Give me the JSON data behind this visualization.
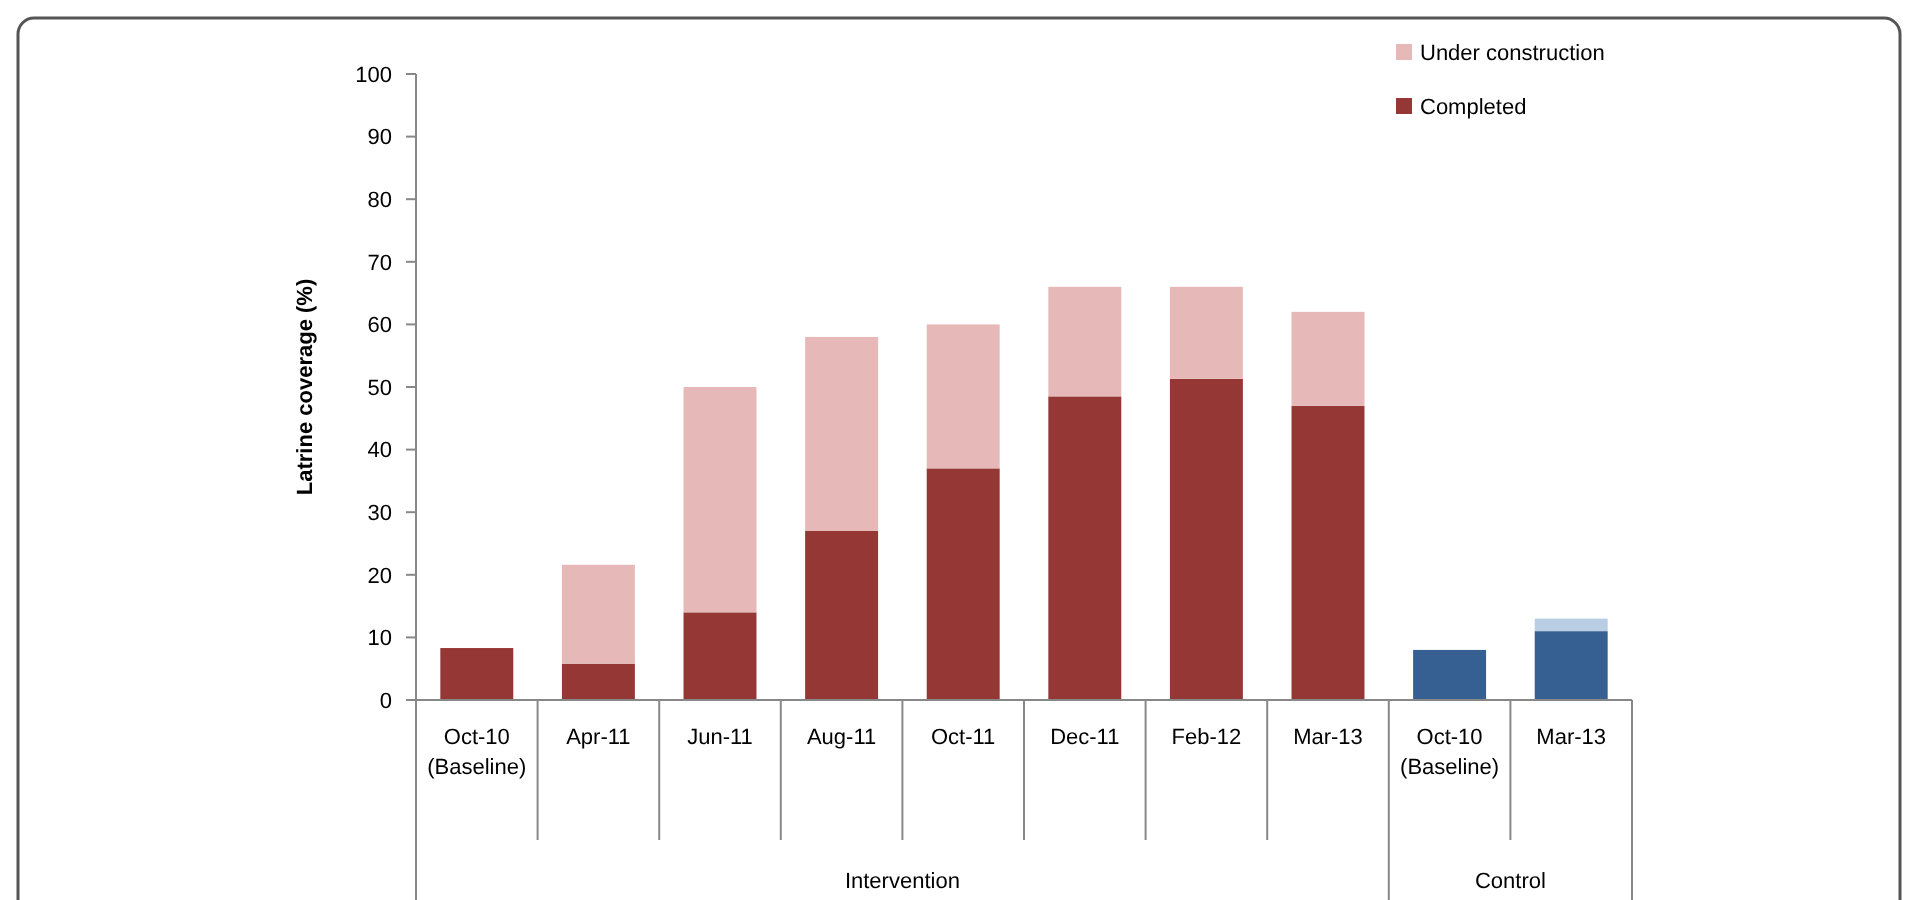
{
  "chart_data": {
    "type": "bar",
    "stacked": true,
    "ylabel": "Latrine coverage (%)",
    "categories": [
      "Oct-10 (Baseline)",
      "Apr-11",
      "Jun-11",
      "Aug-11",
      "Oct-11",
      "Dec-11",
      "Feb-12",
      "Mar-13",
      "Oct-10 (Baseline)",
      "Mar-13"
    ],
    "series": [
      {
        "name": "Completed",
        "color": "#953735",
        "colors": [
          "#953735",
          "#953735",
          "#953735",
          "#953735",
          "#953735",
          "#953735",
          "#953735",
          "#953735",
          "#376092",
          "#376092"
        ],
        "values": [
          8.3,
          5.8,
          14,
          27,
          37,
          48.5,
          51.3,
          47,
          8,
          11
        ]
      },
      {
        "name": "Under construction",
        "color": "#e6b9b8",
        "colors": [
          "#e6b9b8",
          "#e6b9b8",
          "#e6b9b8",
          "#e6b9b8",
          "#e6b9b8",
          "#e6b9b8",
          "#e6b9b8",
          "#e6b9b8",
          "#b9cde5",
          "#b9cde5"
        ],
        "values": [
          0,
          15.8,
          36,
          31,
          23,
          17.5,
          14.7,
          15,
          0,
          2
        ]
      }
    ],
    "annotations": [
      "Intervention",
      "Control"
    ],
    "ylim": [
      0,
      100
    ],
    "yticks": [
      0,
      10,
      20,
      30,
      40,
      50,
      60,
      70,
      80,
      90,
      100
    ],
    "grid": false,
    "legend": "top right"
  }
}
